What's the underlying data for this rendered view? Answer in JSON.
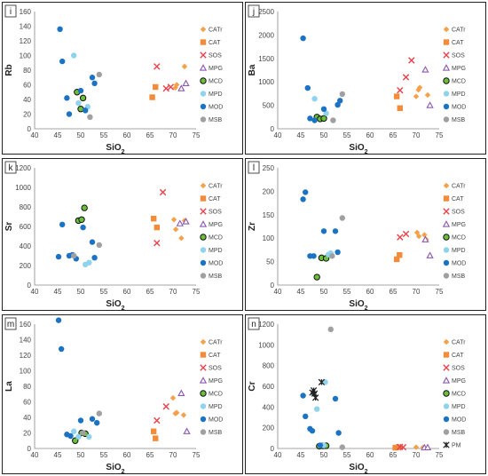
{
  "colors": {
    "CATr": "#f5a04a",
    "CAT": "#f28b3a",
    "SOS": "#e8414a",
    "MPG": "#8a58b3",
    "MCD": "#6abf3b",
    "MPD": "#8fd3ec",
    "MOD": "#1d73c3",
    "MSB": "#a0a0a0",
    "PM": "#222222"
  },
  "legend_order": [
    "CATr",
    "CAT",
    "SOS",
    "MPG",
    "MCD",
    "MPD",
    "MOD",
    "MSB"
  ],
  "legend_markers": {
    "CATr": "diamond",
    "CAT": "square",
    "SOS": "x",
    "MPG": "triangle",
    "MCD": "circle-outline",
    "MPD": "circle",
    "MOD": "circle",
    "MSB": "circle",
    "PM": "star"
  },
  "chart_data": [
    {
      "id": "i",
      "type": "scatter",
      "ylabel": "Rb",
      "xlabel": "SiO2",
      "xlim": [
        40,
        75
      ],
      "ylim": [
        0,
        160
      ],
      "xticks": [
        40,
        45,
        50,
        55,
        60,
        65,
        70,
        75
      ],
      "yticks": [
        0,
        20,
        40,
        60,
        80,
        100,
        120,
        140,
        160
      ],
      "legend": [
        "CATr",
        "CAT",
        "SOS",
        "MPG",
        "MCD",
        "MPD",
        "MOD",
        "MSB"
      ],
      "series": [
        {
          "name": "CATr",
          "points": [
            [
              70.5,
              56
            ],
            [
              70.8,
              60
            ],
            [
              72.5,
              85
            ]
          ]
        },
        {
          "name": "CAT",
          "points": [
            [
              65.5,
              43
            ],
            [
              66.2,
              57
            ]
          ]
        },
        {
          "name": "SOS",
          "points": [
            [
              66.5,
              85
            ],
            [
              68.5,
              55
            ],
            [
              69.5,
              57
            ]
          ]
        },
        {
          "name": "MPG",
          "points": [
            [
              71.8,
              55
            ],
            [
              72.8,
              62
            ]
          ]
        },
        {
          "name": "MCD",
          "points": [
            [
              49.2,
              50
            ],
            [
              50.0,
              27
            ],
            [
              50.5,
              42
            ]
          ]
        },
        {
          "name": "MPD",
          "points": [
            [
              48.5,
              100
            ],
            [
              51.5,
              30
            ],
            [
              49.5,
              35
            ]
          ]
        },
        {
          "name": "MOD",
          "points": [
            [
              45.5,
              136
            ],
            [
              46.0,
              92
            ],
            [
              47.5,
              20
            ],
            [
              47.0,
              42
            ],
            [
              50.0,
              52
            ],
            [
              52.5,
              70
            ],
            [
              53.0,
              62
            ],
            [
              51.0,
              25
            ]
          ]
        },
        {
          "name": "MSB",
          "points": [
            [
              54.0,
              74
            ],
            [
              52.0,
              16
            ]
          ]
        }
      ]
    },
    {
      "id": "j",
      "type": "scatter",
      "ylabel": "Ba",
      "xlabel": "SiO2",
      "xlim": [
        40,
        75
      ],
      "ylim": [
        0,
        2500
      ],
      "xticks": [
        40,
        45,
        50,
        55,
        60,
        65,
        70,
        75
      ],
      "yticks": [
        0,
        500,
        1000,
        1500,
        2000,
        2500
      ],
      "legend": [
        "CATr",
        "CAT",
        "SOS",
        "MPG",
        "MCD",
        "MPD",
        "MOD",
        "MSB"
      ],
      "series": [
        {
          "name": "CATr",
          "points": [
            [
              70.0,
              690
            ],
            [
              70.5,
              830
            ],
            [
              70.8,
              880
            ],
            [
              72.5,
              720
            ]
          ]
        },
        {
          "name": "CAT",
          "points": [
            [
              65.8,
              690
            ],
            [
              66.5,
              440
            ]
          ]
        },
        {
          "name": "SOS",
          "points": [
            [
              66.5,
              820
            ],
            [
              67.8,
              1100
            ],
            [
              69.0,
              1460
            ]
          ]
        },
        {
          "name": "MPG",
          "points": [
            [
              72.0,
              1260
            ],
            [
              73.0,
              500
            ]
          ]
        },
        {
          "name": "MCD",
          "points": [
            [
              48.5,
              250
            ],
            [
              49.2,
              210
            ],
            [
              50.0,
              220
            ]
          ]
        },
        {
          "name": "MPD",
          "points": [
            [
              48.0,
              640
            ],
            [
              50.5,
              330
            ]
          ]
        },
        {
          "name": "MOD",
          "points": [
            [
              45.5,
              1930
            ],
            [
              46.5,
              870
            ],
            [
              47.0,
              220
            ],
            [
              48.0,
              180
            ],
            [
              50.0,
              420
            ],
            [
              53.0,
              510
            ],
            [
              53.5,
              600
            ]
          ]
        },
        {
          "name": "MSB",
          "points": [
            [
              54.0,
              740
            ],
            [
              52.0,
              180
            ]
          ]
        }
      ]
    },
    {
      "id": "k",
      "type": "scatter",
      "ylabel": "Sr",
      "xlabel": "SiO2",
      "xlim": [
        40,
        75
      ],
      "ylim": [
        0,
        1200
      ],
      "xticks": [
        40,
        45,
        50,
        55,
        60,
        65,
        70,
        75
      ],
      "yticks": [
        0,
        200,
        400,
        600,
        800,
        1000,
        1200
      ],
      "legend": [
        "CATr",
        "CAT",
        "SOS",
        "MPG",
        "MCD",
        "MPD",
        "MOD",
        "MSB"
      ],
      "series": [
        {
          "name": "CATr",
          "points": [
            [
              70.2,
              670
            ],
            [
              70.6,
              570
            ],
            [
              71.8,
              480
            ],
            [
              72.5,
              660
            ]
          ]
        },
        {
          "name": "CAT",
          "points": [
            [
              65.8,
              680
            ],
            [
              66.5,
              590
            ]
          ]
        },
        {
          "name": "SOS",
          "points": [
            [
              66.5,
              430
            ],
            [
              67.8,
              950
            ]
          ]
        },
        {
          "name": "MPG",
          "points": [
            [
              71.5,
              630
            ],
            [
              72.8,
              650
            ]
          ]
        },
        {
          "name": "MCD",
          "points": [
            [
              49.5,
              660
            ],
            [
              50.2,
              670
            ],
            [
              50.8,
              790
            ]
          ]
        },
        {
          "name": "MPD",
          "points": [
            [
              51.0,
              210
            ],
            [
              51.8,
              230
            ]
          ]
        },
        {
          "name": "MOD",
          "points": [
            [
              45.2,
              290
            ],
            [
              46.0,
              620
            ],
            [
              47.5,
              300
            ],
            [
              48.2,
              310
            ],
            [
              49.0,
              270
            ],
            [
              50.5,
              590
            ],
            [
              52.5,
              440
            ],
            [
              53.0,
              280
            ]
          ]
        },
        {
          "name": "MSB",
          "points": [
            [
              54.0,
              410
            ],
            [
              48.5,
              300
            ]
          ]
        }
      ]
    },
    {
      "id": "l",
      "type": "scatter",
      "ylabel": "Zr",
      "xlabel": "SiO2",
      "xlim": [
        40,
        75
      ],
      "ylim": [
        0,
        250
      ],
      "xticks": [
        40,
        45,
        50,
        55,
        60,
        65,
        70,
        75
      ],
      "yticks": [
        0,
        50,
        100,
        150,
        200,
        250
      ],
      "legend": [
        "CATr",
        "CAT",
        "SOS",
        "MPG",
        "MCD",
        "MPD",
        "MOD",
        "MSB"
      ],
      "series": [
        {
          "name": "CATr",
          "points": [
            [
              70.2,
              112
            ],
            [
              70.6,
              104
            ],
            [
              71.8,
              107
            ],
            [
              72.2,
              97
            ]
          ]
        },
        {
          "name": "CAT",
          "points": [
            [
              65.8,
              55
            ],
            [
              66.4,
              64
            ]
          ]
        },
        {
          "name": "SOS",
          "points": [
            [
              66.5,
              102
            ],
            [
              67.8,
              109
            ]
          ]
        },
        {
          "name": "MPG",
          "points": [
            [
              72.0,
              97
            ],
            [
              73.0,
              63
            ]
          ]
        },
        {
          "name": "MCD",
          "points": [
            [
              48.5,
              17
            ],
            [
              49.5,
              58
            ],
            [
              50.5,
              57
            ]
          ]
        },
        {
          "name": "MPD",
          "points": [
            [
              51.0,
              65
            ],
            [
              51.5,
              68
            ]
          ]
        },
        {
          "name": "MOD",
          "points": [
            [
              45.5,
              183
            ],
            [
              46.0,
              198
            ],
            [
              47.0,
              62
            ],
            [
              47.8,
              62
            ],
            [
              50.0,
              115
            ],
            [
              52.5,
              115
            ],
            [
              53.0,
              70
            ]
          ]
        },
        {
          "name": "MSB",
          "points": [
            [
              54.0,
              143
            ],
            [
              51.8,
              62
            ]
          ]
        }
      ]
    },
    {
      "id": "m",
      "type": "scatter",
      "ylabel": "La",
      "xlabel": "SiO2",
      "xlim": [
        40,
        75
      ],
      "ylim": [
        0,
        160
      ],
      "xticks": [
        40,
        45,
        50,
        55,
        60,
        65,
        70,
        75
      ],
      "yticks": [
        0,
        20,
        40,
        60,
        80,
        100,
        120,
        140,
        160
      ],
      "legend": [
        "CATr",
        "CAT",
        "SOS",
        "MPG",
        "MCD",
        "MPD",
        "MOD",
        "MSB"
      ],
      "series": [
        {
          "name": "CATr",
          "points": [
            [
              70.0,
              65
            ],
            [
              70.5,
              45
            ],
            [
              70.8,
              46
            ],
            [
              72.3,
              43
            ]
          ]
        },
        {
          "name": "CAT",
          "points": [
            [
              65.8,
              22
            ],
            [
              66.2,
              13
            ]
          ]
        },
        {
          "name": "SOS",
          "points": [
            [
              66.5,
              36
            ],
            [
              68.5,
              54
            ]
          ]
        },
        {
          "name": "MPG",
          "points": [
            [
              71.8,
              71
            ],
            [
              73.0,
              22
            ]
          ]
        },
        {
          "name": "MCD",
          "points": [
            [
              48.8,
              10
            ],
            [
              50.2,
              20
            ],
            [
              51.0,
              19
            ]
          ]
        },
        {
          "name": "MPD",
          "points": [
            [
              48.5,
              22
            ],
            [
              49.5,
              15
            ],
            [
              51.8,
              15
            ]
          ]
        },
        {
          "name": "MOD",
          "points": [
            [
              45.2,
              165
            ],
            [
              45.8,
              128
            ],
            [
              47.0,
              18
            ],
            [
              47.8,
              16
            ],
            [
              50.0,
              36
            ],
            [
              52.5,
              38
            ],
            [
              53.5,
              33
            ]
          ]
        },
        {
          "name": "MSB",
          "points": [
            [
              54.0,
              45
            ],
            [
              50.5,
              20
            ]
          ]
        }
      ]
    },
    {
      "id": "n",
      "type": "scatter",
      "ylabel": "Cr",
      "xlabel": "SiO2",
      "xlim": [
        40,
        75
      ],
      "ylim": [
        0,
        1200
      ],
      "xticks": [
        40,
        45,
        50,
        55,
        60,
        65,
        70,
        75
      ],
      "yticks": [
        0,
        200,
        400,
        600,
        800,
        1000,
        1200
      ],
      "legend": [
        "CATr",
        "CAT",
        "SOS",
        "MPG",
        "MCD",
        "MPD",
        "MOD",
        "MSB",
        "PM"
      ],
      "series": [
        {
          "name": "CATr",
          "points": [
            [
              65.8,
              15
            ],
            [
              66.5,
              10
            ],
            [
              70.0,
              12
            ],
            [
              71.5,
              10
            ]
          ]
        },
        {
          "name": "CAT",
          "points": [
            [
              65.5,
              8
            ],
            [
              66.2,
              12
            ]
          ]
        },
        {
          "name": "SOS",
          "points": [
            [
              66.5,
              15
            ],
            [
              67.2,
              12
            ]
          ]
        },
        {
          "name": "MPG",
          "points": [
            [
              71.8,
              8
            ],
            [
              72.5,
              10
            ]
          ]
        },
        {
          "name": "MCD",
          "points": [
            [
              49.0,
              22
            ],
            [
              49.8,
              25
            ],
            [
              50.5,
              26
            ]
          ]
        },
        {
          "name": "MPD",
          "points": [
            [
              48.5,
              380
            ],
            [
              50.3,
              640
            ],
            [
              50.0,
              30
            ]
          ]
        },
        {
          "name": "MOD",
          "points": [
            [
              45.5,
              510
            ],
            [
              46.0,
              310
            ],
            [
              47.0,
              190
            ],
            [
              47.5,
              170
            ],
            [
              49.2,
              30
            ],
            [
              52.5,
              480
            ],
            [
              53.2,
              150
            ]
          ]
        },
        {
          "name": "MSB",
          "points": [
            [
              51.5,
              1150
            ],
            [
              54.0,
              12
            ]
          ]
        },
        {
          "name": "PM",
          "points": [
            [
              47.5,
              540
            ],
            [
              48.0,
              530
            ],
            [
              47.8,
              560
            ],
            [
              48.2,
              490
            ],
            [
              49.5,
              640
            ]
          ]
        }
      ]
    }
  ]
}
